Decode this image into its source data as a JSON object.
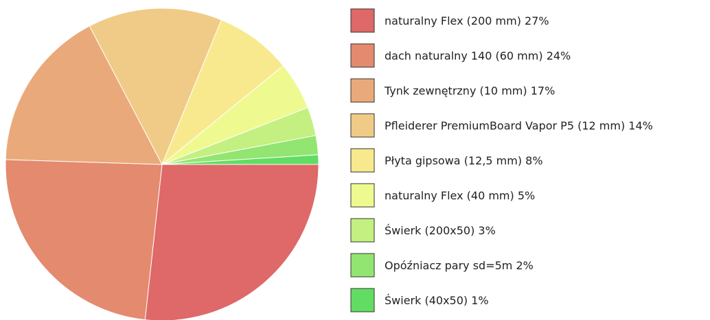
{
  "chart_data": {
    "type": "pie",
    "categories": [
      "naturalny Flex (200 mm)",
      "dach naturalny 140 (60 mm)",
      "Tynk zewnętrzny (10 mm)",
      "Pfleiderer PremiumBoard Vapor P5 (12 mm)",
      "Płyta gipsowa (12,5 mm)",
      "naturalny Flex (40 mm)",
      "Świerk (200x50)",
      "Opóźniacz pary sd=5m",
      "Świerk (40x50)"
    ],
    "values": [
      27,
      24,
      17,
      14,
      8,
      5,
      3,
      2,
      1
    ],
    "value_labels": [
      "27%",
      "24%",
      "17%",
      "14%",
      "8%",
      "5%",
      "3%",
      "2%",
      "1%"
    ],
    "colors": [
      "#df6868",
      "#e48a6f",
      "#eaa97a",
      "#f0cb87",
      "#f8e98f",
      "#eefa8f",
      "#c3f081",
      "#93e571",
      "#62dd63"
    ],
    "legend": "right"
  }
}
